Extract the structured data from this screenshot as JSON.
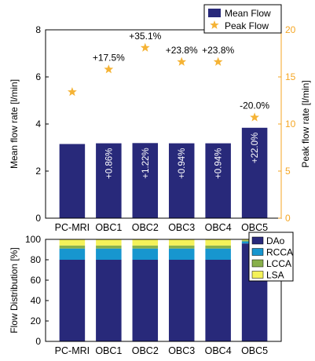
{
  "colors": {
    "bar": "#28297a",
    "star": "#f5b335",
    "right_axis": "#f5a623",
    "dao": "#28297a",
    "rcca": "#1796cf",
    "lcca": "#88b04b",
    "lsa": "#f4f259"
  },
  "chart_data": [
    {
      "type": "bar",
      "categories": [
        "PC-MRI",
        "OBC1",
        "OBC2",
        "OBC3",
        "OBC4",
        "OBC5"
      ],
      "ylabel": "Mean flow rate [l/min]",
      "y2label": "Peak flow rate [l/min]",
      "ylim": [
        0,
        8
      ],
      "y2lim": [
        0,
        20
      ],
      "yticks": [
        "0",
        "2",
        "4",
        "6",
        "8"
      ],
      "y2ticks": [
        "0",
        "5",
        "10",
        "15",
        "20"
      ],
      "legend_placement": "top-right",
      "series": [
        {
          "name": "Mean Flow",
          "type": "bar",
          "axis": "left",
          "values": [
            3.15,
            3.18,
            3.19,
            3.18,
            3.18,
            3.84
          ],
          "labels": [
            "",
            "+0.86%",
            "+1.22%",
            "+0.94%",
            "+0.94%",
            "+22.0%"
          ]
        },
        {
          "name": "Peak Flow",
          "type": "scatter",
          "axis": "right",
          "values": [
            13.4,
            15.8,
            18.1,
            16.6,
            16.6,
            10.7
          ],
          "labels": [
            "",
            "+17.5%",
            "+35.1%",
            "+23.8%",
            "+23.8%",
            "-20.0%"
          ]
        }
      ]
    },
    {
      "type": "bar",
      "stacked": true,
      "categories": [
        "PC-MRI",
        "OBC1",
        "OBC2",
        "OBC3",
        "OBC4",
        "OBC5"
      ],
      "ylabel": "Flow Distribution [%]",
      "ylim": [
        0,
        100
      ],
      "yticks": [
        "0",
        "20",
        "40",
        "60",
        "80",
        "100"
      ],
      "legend_placement": "top-right",
      "series": [
        {
          "name": "DAo",
          "values": [
            80,
            80,
            80,
            80,
            80,
            96
          ]
        },
        {
          "name": "RCCA",
          "values": [
            11,
            11,
            11,
            11,
            11,
            2
          ]
        },
        {
          "name": "LCCA",
          "values": [
            3,
            3,
            3,
            3,
            3,
            1
          ]
        },
        {
          "name": "LSA",
          "values": [
            6,
            6,
            6,
            6,
            6,
            1
          ]
        }
      ]
    }
  ]
}
